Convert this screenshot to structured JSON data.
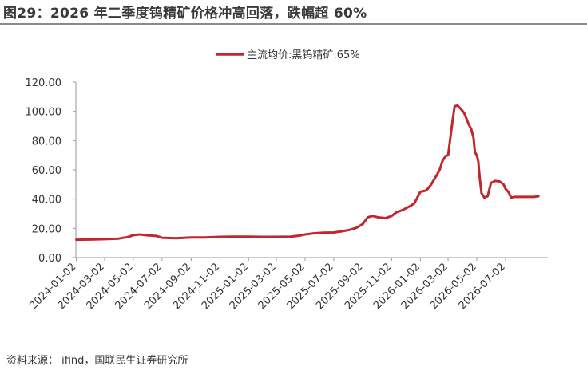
{
  "header": {
    "title": "图29：2026 年二季度钨精矿价格冲高回落，跌幅超 60%"
  },
  "footer": {
    "source": "资料来源：   ifind，国联民生证券研究所"
  },
  "colors": {
    "series": "#c0282d",
    "axis": "#999999"
  },
  "chart_data": {
    "type": "line",
    "title": "",
    "xlabel": "",
    "ylabel": "",
    "ylim": [
      0,
      120
    ],
    "xlim": [
      "2024-01-01",
      "2026-09-30"
    ],
    "yticks": [
      "0.00",
      "20.00",
      "40.00",
      "60.00",
      "80.00",
      "100.00",
      "120.00"
    ],
    "xticks": [
      "2024-01-02",
      "2024-03-02",
      "2024-05-02",
      "2024-07-02",
      "2024-09-02",
      "2024-11-02",
      "2025-01-02",
      "2025-03-02",
      "2025-05-02",
      "2025-07-02",
      "2025-09-02",
      "2025-11-02",
      "2026-01-02",
      "2026-03-02",
      "2026-05-02",
      "2026-07-02"
    ],
    "legend": {
      "position": "top-center"
    },
    "grid": false,
    "series": [
      {
        "name": "主流均价:黑钨精矿:65%",
        "points": [
          [
            "2024-01-02",
            12.2
          ],
          [
            "2024-02-01",
            12.3
          ],
          [
            "2024-03-01",
            12.6
          ],
          [
            "2024-04-01",
            13.0
          ],
          [
            "2024-04-20",
            14.0
          ],
          [
            "2024-05-02",
            15.3
          ],
          [
            "2024-05-15",
            15.8
          ],
          [
            "2024-06-01",
            15.2
          ],
          [
            "2024-06-20",
            14.8
          ],
          [
            "2024-07-02",
            13.6
          ],
          [
            "2024-08-01",
            13.2
          ],
          [
            "2024-09-02",
            13.8
          ],
          [
            "2024-10-01",
            13.8
          ],
          [
            "2024-11-02",
            14.2
          ],
          [
            "2024-12-01",
            14.3
          ],
          [
            "2025-01-02",
            14.3
          ],
          [
            "2025-02-01",
            14.2
          ],
          [
            "2025-03-02",
            14.2
          ],
          [
            "2025-04-01",
            14.3
          ],
          [
            "2025-04-20",
            15.0
          ],
          [
            "2025-05-02",
            15.8
          ],
          [
            "2025-05-20",
            16.6
          ],
          [
            "2025-06-10",
            17.0
          ],
          [
            "2025-07-02",
            17.2
          ],
          [
            "2025-07-20",
            18.0
          ],
          [
            "2025-08-05",
            19.0
          ],
          [
            "2025-08-20",
            20.5
          ],
          [
            "2025-09-02",
            23.0
          ],
          [
            "2025-09-12",
            27.5
          ],
          [
            "2025-09-22",
            28.5
          ],
          [
            "2025-10-05",
            27.5
          ],
          [
            "2025-10-20",
            27.0
          ],
          [
            "2025-11-02",
            28.5
          ],
          [
            "2025-11-12",
            31.0
          ],
          [
            "2025-11-25",
            32.5
          ],
          [
            "2025-12-10",
            35.0
          ],
          [
            "2025-12-20",
            37.0
          ],
          [
            "2026-01-02",
            45.0
          ],
          [
            "2026-01-15",
            46.0
          ],
          [
            "2026-01-25",
            50.0
          ],
          [
            "2026-02-05",
            56.0
          ],
          [
            "2026-02-12",
            60.0
          ],
          [
            "2026-02-18",
            66.0
          ],
          [
            "2026-02-25",
            69.5
          ],
          [
            "2026-03-02",
            70.0
          ],
          [
            "2026-03-08",
            85.0
          ],
          [
            "2026-03-12",
            95.0
          ],
          [
            "2026-03-16",
            103.5
          ],
          [
            "2026-03-22",
            104.0
          ],
          [
            "2026-03-28",
            102.0
          ],
          [
            "2026-04-05",
            99.0
          ],
          [
            "2026-04-10",
            95.0
          ],
          [
            "2026-04-15",
            91.0
          ],
          [
            "2026-04-20",
            88.0
          ],
          [
            "2026-04-25",
            82.0
          ],
          [
            "2026-04-28",
            72.0
          ],
          [
            "2026-05-02",
            70.0
          ],
          [
            "2026-05-05",
            66.0
          ],
          [
            "2026-05-08",
            55.0
          ],
          [
            "2026-05-12",
            44.0
          ],
          [
            "2026-05-18",
            41.0
          ],
          [
            "2026-05-25",
            42.0
          ],
          [
            "2026-06-01",
            51.0
          ],
          [
            "2026-06-10",
            52.5
          ],
          [
            "2026-06-20",
            52.0
          ],
          [
            "2026-06-28",
            50.0
          ],
          [
            "2026-07-02",
            47.0
          ],
          [
            "2026-07-08",
            45.0
          ],
          [
            "2026-07-14",
            41.0
          ],
          [
            "2026-07-20",
            41.5
          ],
          [
            "2026-08-01",
            41.5
          ],
          [
            "2026-08-20",
            41.5
          ],
          [
            "2026-09-01",
            41.5
          ],
          [
            "2026-09-10",
            42.0
          ]
        ]
      }
    ]
  }
}
